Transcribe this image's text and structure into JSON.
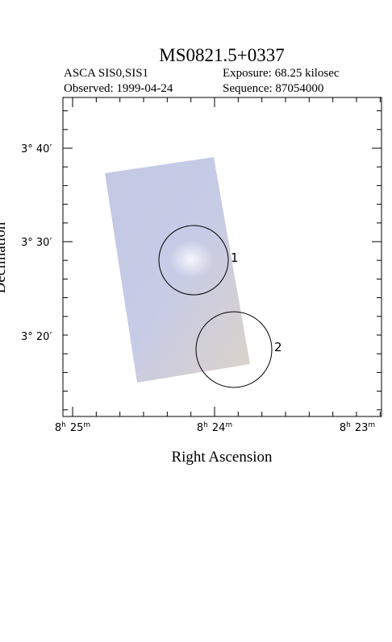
{
  "header": {
    "title": "MS0821.5+0337",
    "instrument": "ASCA SIS0,SIS1",
    "exposure": "Exposure: 68.25 kilosec",
    "observed": "Observed: 1999-04-24",
    "sequence": "Sequence: 87054000"
  },
  "axes": {
    "x_label": "Right Ascension",
    "y_label": "Declination",
    "x_ticks": [
      {
        "h": "8",
        "h_unit": "h",
        "m": "25",
        "m_unit": "m"
      },
      {
        "h": "8",
        "h_unit": "h",
        "m": "24",
        "m_unit": "m"
      },
      {
        "h": "8",
        "h_unit": "h",
        "m": "23",
        "m_unit": "m"
      }
    ],
    "y_ticks": [
      "3° 40′",
      "3° 30′",
      "3° 20′"
    ]
  },
  "regions": [
    {
      "label": "1"
    },
    {
      "label": "2"
    }
  ]
}
